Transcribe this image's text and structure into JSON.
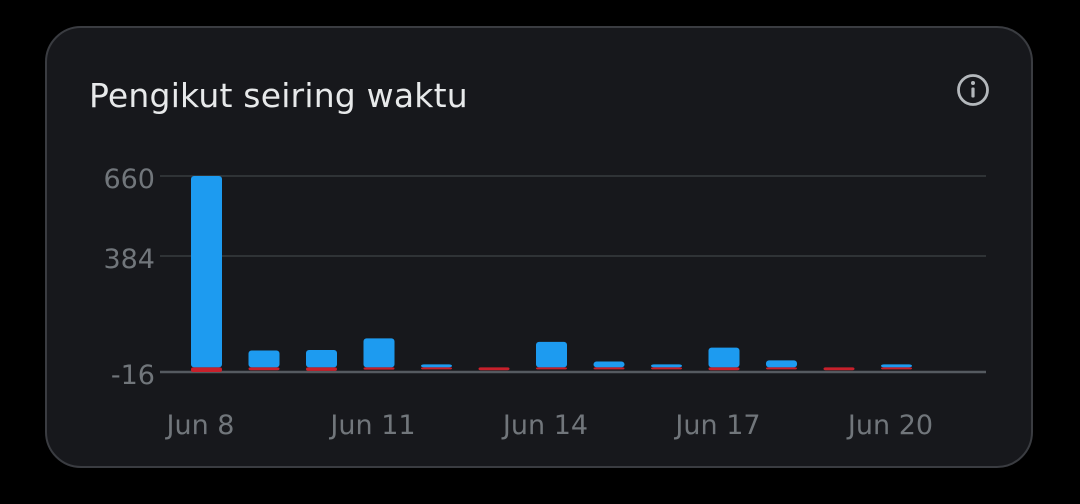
{
  "card": {
    "title": "Pengikut seiring waktu",
    "info_icon": "info-circle-icon"
  },
  "colors": {
    "background": "#000000",
    "card_bg": "#17181c",
    "card_border": "#3a3c41",
    "title": "#e7e9ea",
    "tick_text": "#71767b",
    "gridline": "#2f3336",
    "baseline": "#555a60",
    "gain_bar": "#1d9bf0",
    "loss_bar": "#c8202b"
  },
  "chart_data": {
    "type": "bar",
    "title": "Pengikut seiring waktu",
    "xlabel": "",
    "ylabel": "",
    "grid": true,
    "ylim": [
      -16,
      660
    ],
    "yticks": [
      660,
      384,
      -16
    ],
    "ytick_labels": [
      "660",
      "384",
      "-16"
    ],
    "xtick_labels": [
      "Jun 8",
      "Jun 11",
      "Jun 14",
      "Jun 17",
      "Jun 20"
    ],
    "categories": [
      "Jun 8",
      "Jun 9",
      "Jun 10",
      "Jun 11",
      "Jun 12",
      "Jun 13",
      "Jun 14",
      "Jun 15",
      "Jun 16",
      "Jun 17",
      "Jun 18",
      "Jun 19",
      "Jun 20"
    ],
    "series": [
      {
        "values": [
          660,
          58,
          60,
          100,
          8,
          0,
          88,
          20,
          8,
          68,
          24,
          0,
          2
        ]
      },
      {
        "values": [
          -16,
          -10,
          -12,
          -8,
          -3,
          -10,
          -3,
          -2,
          -4,
          -10,
          -7,
          -10,
          -2
        ]
      }
    ]
  }
}
